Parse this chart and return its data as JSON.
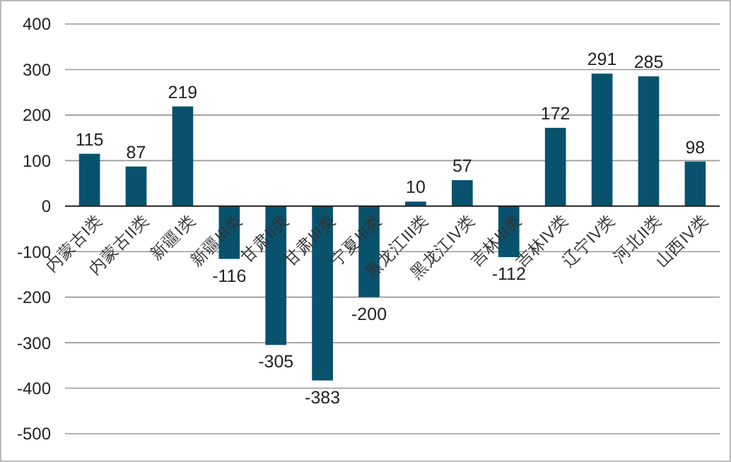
{
  "chart_data": {
    "type": "bar",
    "categories": [
      "内蒙古I类",
      "内蒙古II类",
      "新疆I类",
      "新疆III类",
      "甘肃II类",
      "甘肃III类",
      "宁夏III类",
      "黑龙江III类",
      "黑龙江IV类",
      "吉林III类",
      "吉林IV类",
      "辽宁IV类",
      "河北II类",
      "山西IV类"
    ],
    "values": [
      115,
      87,
      219,
      -116,
      -305,
      -383,
      -200,
      10,
      57,
      -112,
      172,
      291,
      285,
      98
    ],
    "color": "#08526e",
    "ylim": [
      -500,
      400
    ],
    "yticks": [
      -500,
      -400,
      -300,
      -200,
      -100,
      0,
      100,
      200,
      300,
      400
    ],
    "grid": "y",
    "data_labels": true
  }
}
